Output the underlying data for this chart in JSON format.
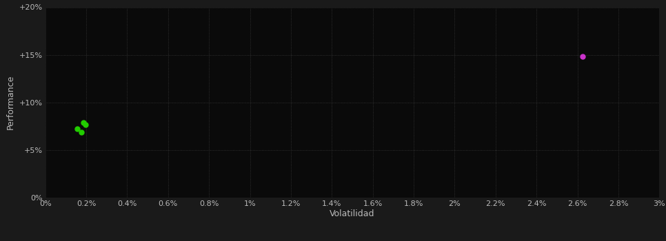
{
  "fig_bg_color": "#1a1a1a",
  "plot_bg_color": "#0a0a0a",
  "grid_color": "#3a3a3a",
  "grid_style": ":",
  "xlabel": "Volatilidad",
  "ylabel": "Performance",
  "xlabel_color": "#bbbbbb",
  "ylabel_color": "#bbbbbb",
  "tick_color": "#bbbbbb",
  "xlim": [
    0.0,
    0.03
  ],
  "ylim": [
    0.0,
    0.2
  ],
  "xticks": [
    0.0,
    0.002,
    0.004,
    0.006,
    0.008,
    0.01,
    0.012,
    0.014,
    0.016,
    0.018,
    0.02,
    0.022,
    0.024,
    0.026,
    0.028,
    0.03
  ],
  "yticks": [
    0.0,
    0.05,
    0.1,
    0.15,
    0.2
  ],
  "xtick_labels": [
    "0%",
    "0.2%",
    "0.4%",
    "0.6%",
    "0.8%",
    "1%",
    "1.2%",
    "1.4%",
    "1.6%",
    "1.8%",
    "2%",
    "2.2%",
    "2.4%",
    "2.6%",
    "2.8%",
    "3%"
  ],
  "ytick_labels": [
    "0%",
    "+5%",
    "+10%",
    "+15%",
    "+20%"
  ],
  "green_points": [
    [
      0.00155,
      0.072
    ],
    [
      0.00185,
      0.079
    ],
    [
      0.00195,
      0.077
    ],
    [
      0.00175,
      0.069
    ]
  ],
  "magenta_points": [
    [
      0.02625,
      0.148
    ]
  ],
  "green_color": "#22cc00",
  "magenta_color": "#cc33cc",
  "marker_size": 5,
  "tick_fontsize": 8,
  "label_fontsize": 9
}
